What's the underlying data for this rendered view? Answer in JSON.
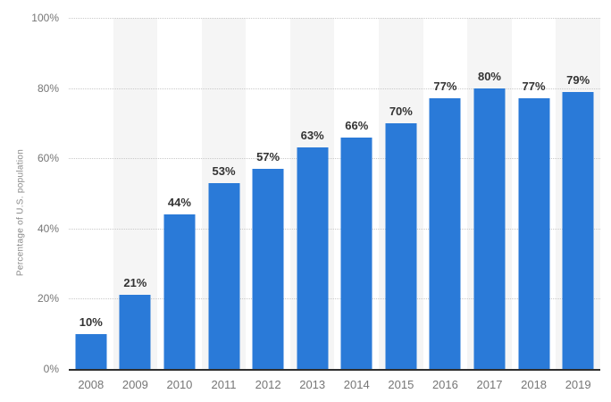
{
  "chart_data": {
    "type": "bar",
    "title": "",
    "xlabel": "",
    "ylabel": "Percentage of U.S. population",
    "categories": [
      "2008",
      "2009",
      "2010",
      "2011",
      "2012",
      "2013",
      "2014",
      "2015",
      "2016",
      "2017",
      "2018",
      "2019"
    ],
    "values": [
      10,
      21,
      44,
      53,
      57,
      63,
      66,
      70,
      77,
      80,
      77,
      79
    ],
    "value_labels": [
      "10%",
      "21%",
      "44%",
      "53%",
      "57%",
      "63%",
      "66%",
      "70%",
      "77%",
      "80%",
      "77%",
      "79%"
    ],
    "ylim": [
      0,
      100
    ],
    "yticks": [
      0,
      20,
      40,
      60,
      80,
      100
    ],
    "ytick_labels": [
      "0%",
      "20%",
      "40%",
      "60%",
      "80%",
      "100%"
    ],
    "grid": true,
    "gridline_style": "dotted",
    "legend": "none",
    "colors": {
      "bar": "#2a7ad8",
      "stripe_band": "#f5f5f5",
      "gridline": "#c9c9c9",
      "axis_line": "#2e2e2e",
      "tick_label": "#767676",
      "value_label": "#333333",
      "axis_title": "#8a8a8a"
    },
    "striped_columns": "alternate-odd"
  }
}
